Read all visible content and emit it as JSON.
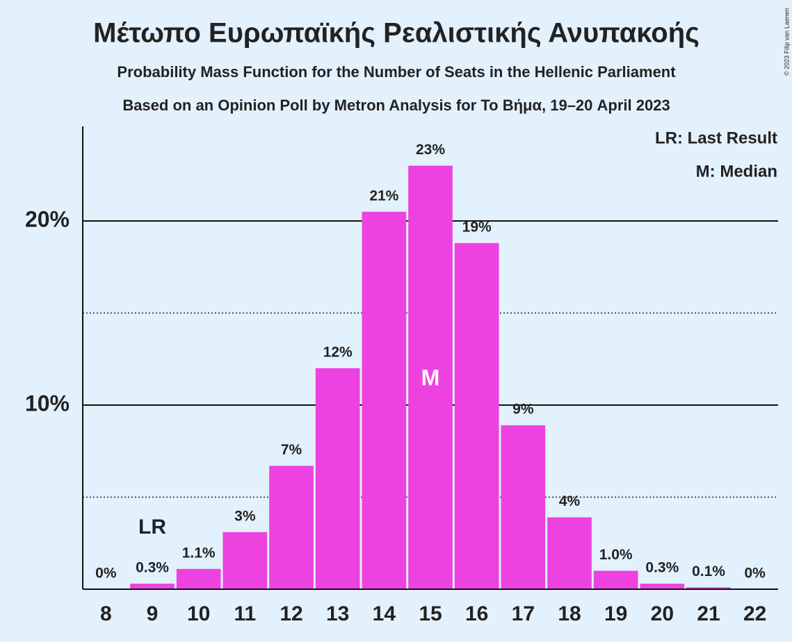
{
  "chart_data": {
    "type": "bar",
    "title": "Μέτωπο Ευρωπαϊκής Ρεαλιστικής Ανυπακοής",
    "subtitle": "Probability Mass Function for the Number of Seats in the Hellenic Parliament",
    "subtitle2": "Based on an Opinion Poll by Metron Analysis for To Βήμα, 19–20 April 2023",
    "copyright": "© 2023 Filip van Laenen",
    "categories": [
      8,
      9,
      10,
      11,
      12,
      13,
      14,
      15,
      16,
      17,
      18,
      19,
      20,
      21,
      22
    ],
    "values": [
      0,
      0.3,
      1.1,
      3.1,
      6.7,
      12.0,
      20.5,
      23.0,
      18.8,
      8.9,
      3.9,
      1.0,
      0.3,
      0.1,
      0
    ],
    "value_labels": [
      "0%",
      "0.3%",
      "1.1%",
      "3%",
      "7%",
      "12%",
      "21%",
      "23%",
      "19%",
      "9%",
      "4%",
      "1.0%",
      "0.3%",
      "0.1%",
      "0%"
    ],
    "color": "#ee42e0",
    "ylim": [
      0,
      25
    ],
    "yticks": [
      {
        "value": 10,
        "label": "10%"
      },
      {
        "value": 20,
        "label": "20%"
      }
    ],
    "minor_yticks": [
      5,
      15
    ],
    "grid": true,
    "last_result": {
      "label": "LR",
      "x": 9
    },
    "median": {
      "label": "M",
      "x": 15
    },
    "legend": [
      "LR: Last Result",
      "M: Median"
    ]
  }
}
